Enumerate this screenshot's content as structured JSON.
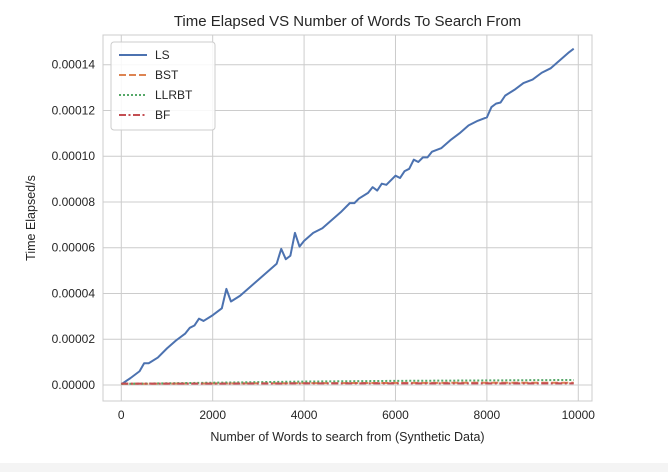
{
  "chart_data": {
    "type": "line",
    "title": "Time Elapsed VS Number of Words To Search From",
    "xlabel": "Number of Words to search from (Synthetic Data)",
    "ylabel": "Time Elapsed/s",
    "xlim": [
      -400,
      10300
    ],
    "ylim": [
      -7e-06,
      0.000153
    ],
    "xticks": [
      0,
      2000,
      4000,
      6000,
      8000,
      10000
    ],
    "xtick_labels": [
      "0",
      "2000",
      "4000",
      "6000",
      "8000",
      "10000"
    ],
    "yticks": [
      0,
      2e-05,
      4e-05,
      6e-05,
      8e-05,
      0.0001,
      0.00012,
      0.00014
    ],
    "ytick_labels": [
      "0.00000",
      "0.00002",
      "0.00004",
      "0.00006",
      "0.00008",
      "0.00010",
      "0.00012",
      "0.00014"
    ],
    "grid": true,
    "legend_position": "top-left",
    "series": [
      {
        "name": "LS",
        "color": "#4c72b0",
        "dash": "solid",
        "x": [
          0,
          200,
          400,
          500,
          600,
          800,
          1000,
          1200,
          1400,
          1500,
          1600,
          1700,
          1800,
          2000,
          2200,
          2300,
          2400,
          2600,
          2800,
          3000,
          3200,
          3400,
          3500,
          3600,
          3700,
          3800,
          3900,
          4000,
          4200,
          4400,
          4600,
          4800,
          5000,
          5100,
          5200,
          5400,
          5500,
          5600,
          5700,
          5800,
          6000,
          6100,
          6200,
          6300,
          6400,
          6500,
          6600,
          6700,
          6800,
          7000,
          7200,
          7400,
          7600,
          7800,
          8000,
          8100,
          8200,
          8300,
          8400,
          8600,
          8800,
          9000,
          9200,
          9400,
          9600,
          9800,
          9900
        ],
        "values": [
          3e-07,
          3e-06,
          6e-06,
          9.5e-06,
          9.5e-06,
          1.2e-05,
          1.6e-05,
          1.95e-05,
          2.25e-05,
          2.5e-05,
          2.6e-05,
          2.9e-05,
          2.8e-05,
          3.05e-05,
          3.35e-05,
          4.2e-05,
          3.65e-05,
          3.9e-05,
          4.25e-05,
          4.6e-05,
          4.95e-05,
          5.3e-05,
          5.95e-05,
          5.5e-05,
          5.65e-05,
          6.65e-05,
          6.05e-05,
          6.3e-05,
          6.65e-05,
          6.85e-05,
          7.2e-05,
          7.55e-05,
          7.95e-05,
          7.95e-05,
          8.15e-05,
          8.4e-05,
          8.65e-05,
          8.5e-05,
          8.8e-05,
          8.75e-05,
          9.15e-05,
          9.05e-05,
          9.35e-05,
          9.45e-05,
          9.85e-05,
          9.75e-05,
          9.95e-05,
          9.95e-05,
          0.000102,
          0.0001035,
          0.000107,
          0.00011,
          0.0001135,
          0.0001155,
          0.000117,
          0.0001215,
          0.000123,
          0.0001235,
          0.0001265,
          0.000129,
          0.000132,
          0.0001335,
          0.0001365,
          0.0001385,
          0.000142,
          0.0001455,
          0.000147
        ]
      },
      {
        "name": "BST",
        "color": "#dd8452",
        "dash": "dashed",
        "x": [
          0,
          2000,
          4000,
          6000,
          8000,
          9900
        ],
        "values": [
          5e-07,
          7e-07,
          8e-07,
          9e-07,
          1e-06,
          1e-06
        ]
      },
      {
        "name": "LLRBT",
        "color": "#55a868",
        "dash": "dotted",
        "x": [
          0,
          2000,
          4000,
          6000,
          8000,
          9900
        ],
        "values": [
          5e-07,
          1e-06,
          1.5e-06,
          1.8e-06,
          2e-06,
          2.2e-06
        ]
      },
      {
        "name": "BF",
        "color": "#c44e52",
        "dash": "dashdot",
        "x": [
          0,
          2000,
          4000,
          6000,
          8000,
          9900
        ],
        "values": [
          6e-07,
          6e-07,
          7e-07,
          7e-07,
          7e-07,
          7e-07
        ]
      }
    ]
  }
}
